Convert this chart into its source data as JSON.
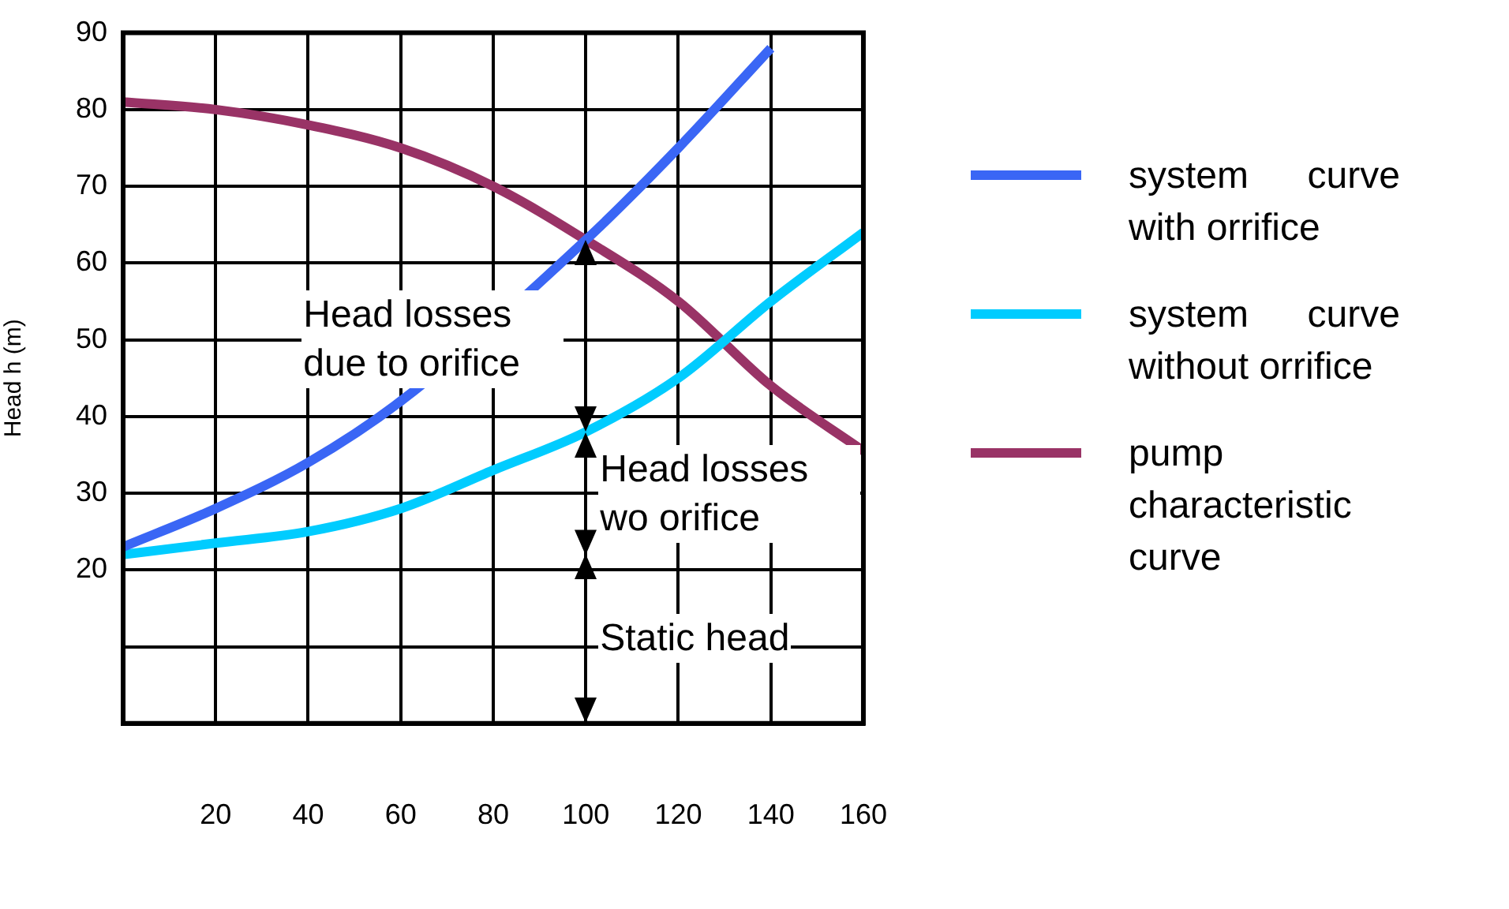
{
  "chart_data": {
    "type": "line",
    "ylabel": "Head h (m)",
    "x": [
      0,
      20,
      40,
      60,
      80,
      100,
      120,
      140,
      160
    ],
    "series": [
      {
        "name": "system curve with orrifice",
        "color": "#3a66f5",
        "values": [
          23,
          28,
          34,
          42,
          null,
          63,
          75,
          88,
          null
        ]
      },
      {
        "name": "system curve without orrifice",
        "color": "#00ccff",
        "values": [
          22,
          23.5,
          25,
          28,
          33,
          38,
          45,
          55,
          64
        ]
      },
      {
        "name": "pump characteristic curve",
        "color": "#993366",
        "values": [
          81,
          80,
          78,
          75,
          70,
          63,
          55,
          44,
          35.5
        ]
      }
    ],
    "xlim": [
      0,
      160
    ],
    "xticks": [
      20,
      40,
      60,
      80,
      100,
      120,
      140,
      160
    ],
    "ylim": [
      0,
      90
    ],
    "yticks": [
      {
        "value": 0,
        "label": null
      },
      {
        "value": 10,
        "label": null
      },
      20,
      30,
      40,
      50,
      60,
      70,
      80,
      90
    ],
    "grid": true,
    "legend": "right",
    "marker": "none",
    "line_style": "solid",
    "annotations": [
      "Static head",
      "Head losses wo orifice",
      "Head losses due to orifice"
    ]
  }
}
